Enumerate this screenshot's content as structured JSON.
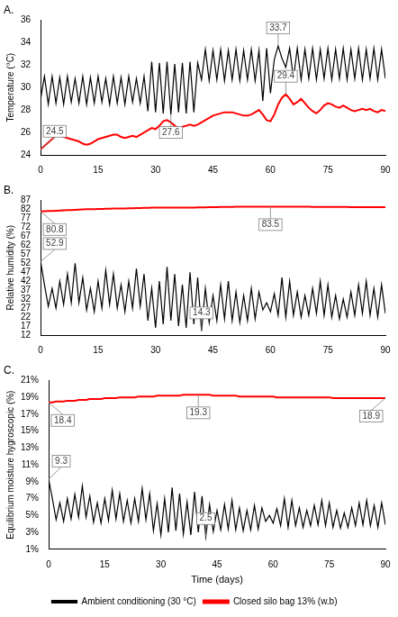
{
  "chart_data": [
    {
      "type": "line",
      "title": "A.",
      "y_label": "Temperature (°C)",
      "x": [
        0,
        1,
        2,
        3,
        4,
        5,
        6,
        7,
        8,
        9,
        10,
        11,
        12,
        13,
        14,
        15,
        16,
        17,
        18,
        19,
        20,
        21,
        22,
        23,
        24,
        25,
        26,
        27,
        28,
        29,
        30,
        31,
        32,
        33,
        34,
        35,
        36,
        37,
        38,
        39,
        40,
        41,
        42,
        43,
        44,
        45,
        46,
        47,
        48,
        49,
        50,
        51,
        52,
        53,
        54,
        55,
        56,
        57,
        58,
        59,
        60,
        61,
        62,
        63,
        64,
        65,
        66,
        67,
        68,
        69,
        70,
        71,
        72,
        73,
        74,
        75,
        76,
        77,
        78,
        79,
        80,
        81,
        82,
        83,
        84,
        85,
        86,
        87,
        88,
        89,
        90
      ],
      "xlim": [
        0,
        90
      ],
      "xticks": [
        0,
        15,
        30,
        45,
        60,
        75,
        90
      ],
      "ylim": [
        24,
        36
      ],
      "yticks": [
        24,
        26,
        28,
        30,
        32,
        34,
        36
      ],
      "grid": false,
      "series": [
        {
          "color": "#000000",
          "values": [
            29.0,
            31.0,
            28.5,
            31.0,
            28.6,
            30.9,
            28.5,
            31.0,
            28.7,
            30.8,
            28.6,
            31.0,
            28.5,
            30.9,
            28.6,
            31.0,
            28.7,
            30.8,
            28.5,
            31.0,
            28.6,
            30.9,
            28.5,
            31.0,
            28.7,
            30.8,
            28.6,
            31.0,
            27.9,
            32.3,
            27.8,
            32.2,
            27.7,
            32.3,
            27.6,
            32.1,
            27.8,
            32.2,
            27.7,
            32.3,
            27.8,
            32.2,
            30.7,
            33.4,
            30.6,
            33.3,
            30.7,
            33.4,
            30.6,
            33.3,
            30.7,
            33.4,
            30.6,
            33.3,
            30.7,
            33.4,
            30.6,
            33.3,
            28.8,
            33.5,
            29.5,
            32.5,
            33.7,
            32.6,
            31.8,
            33.5,
            30.8,
            33.5,
            30.7,
            33.4,
            30.8,
            33.5,
            30.7,
            33.4,
            30.8,
            33.5,
            30.7,
            33.4,
            30.8,
            33.5,
            30.7,
            33.4,
            30.8,
            33.5,
            30.7,
            33.4,
            30.8,
            33.5,
            30.7,
            33.4,
            30.8
          ]
        },
        {
          "color": "#ff0000",
          "values": [
            24.5,
            24.8,
            25.1,
            25.4,
            25.7,
            25.8,
            25.6,
            25.5,
            25.4,
            25.3,
            25.2,
            25.0,
            24.9,
            25.0,
            25.2,
            25.4,
            25.5,
            25.6,
            25.7,
            25.8,
            25.8,
            25.6,
            25.5,
            25.6,
            25.7,
            25.6,
            25.8,
            26.0,
            26.2,
            26.4,
            26.3,
            26.6,
            27.0,
            27.1,
            26.9,
            26.6,
            26.4,
            26.5,
            26.6,
            26.7,
            26.6,
            26.7,
            26.9,
            27.1,
            27.3,
            27.5,
            27.6,
            27.7,
            27.8,
            27.8,
            27.8,
            27.7,
            27.6,
            27.5,
            27.5,
            27.6,
            27.8,
            28.0,
            27.6,
            27.1,
            27.0,
            27.6,
            28.5,
            29.1,
            29.4,
            29.0,
            28.5,
            28.7,
            29.0,
            28.6,
            28.2,
            27.9,
            27.7,
            28.0,
            28.4,
            28.6,
            28.5,
            28.3,
            28.2,
            28.4,
            28.2,
            28.0,
            27.9,
            28.0,
            28.1,
            28.0,
            28.1,
            27.9,
            27.8,
            28.0,
            27.9
          ]
        }
      ],
      "annotations": [
        {
          "x": 62,
          "y": 33.7,
          "label": "33.7"
        },
        {
          "x": 34,
          "y": 27.6,
          "label": "27.6"
        },
        {
          "x": 64,
          "y": 29.4,
          "label": "29.4"
        },
        {
          "x": 0,
          "y": 24.5,
          "label": "24.5"
        }
      ]
    },
    {
      "type": "line",
      "title": "B.",
      "y_label": "Relative humidity (%)",
      "x": [
        0,
        1,
        2,
        3,
        4,
        5,
        6,
        7,
        8,
        9,
        10,
        11,
        12,
        13,
        14,
        15,
        16,
        17,
        18,
        19,
        20,
        21,
        22,
        23,
        24,
        25,
        26,
        27,
        28,
        29,
        30,
        31,
        32,
        33,
        34,
        35,
        36,
        37,
        38,
        39,
        40,
        41,
        42,
        43,
        44,
        45,
        46,
        47,
        48,
        49,
        50,
        51,
        52,
        53,
        54,
        55,
        56,
        57,
        58,
        59,
        60,
        61,
        62,
        63,
        64,
        65,
        66,
        67,
        68,
        69,
        70,
        71,
        72,
        73,
        74,
        75,
        76,
        77,
        78,
        79,
        80,
        81,
        82,
        83,
        84,
        85,
        86,
        87,
        88,
        89,
        90
      ],
      "xlim": [
        0,
        90
      ],
      "xticks": [
        0,
        15,
        30,
        45,
        60,
        75,
        90
      ],
      "ylim": [
        12,
        87
      ],
      "yticks": [
        12,
        17,
        22,
        27,
        32,
        37,
        42,
        47,
        52,
        57,
        62,
        67,
        72,
        77,
        82,
        87
      ],
      "grid": false,
      "series": [
        {
          "color": "#000000",
          "values": [
            52.9,
            40.0,
            28.0,
            38.0,
            27.0,
            42.0,
            29.0,
            46.0,
            30.0,
            52.0,
            30.0,
            44.0,
            26.0,
            38.0,
            25.0,
            42.0,
            27.0,
            48.0,
            29.0,
            46.0,
            27.0,
            40.0,
            25.0,
            42.0,
            27.0,
            49.0,
            28.0,
            46.0,
            20.0,
            38.0,
            16.0,
            42.0,
            18.0,
            50.0,
            20.0,
            46.0,
            17.0,
            40.0,
            16.0,
            47.0,
            18.0,
            44.0,
            14.3,
            38.0,
            19.0,
            34.0,
            20.0,
            40.0,
            21.0,
            42.0,
            20.0,
            36.0,
            19.0,
            34.0,
            20.0,
            38.0,
            21.0,
            36.0,
            26.0,
            30.0,
            25.0,
            35.0,
            23.0,
            44.0,
            22.0,
            42.0,
            23.0,
            36.0,
            22.0,
            34.0,
            23.0,
            38.0,
            24.0,
            42.0,
            23.0,
            40.0,
            22.0,
            34.0,
            21.0,
            32.0,
            22.0,
            36.0,
            23.0,
            40.0,
            24.0,
            42.0,
            23.0,
            38.0,
            22.0,
            40.0,
            24.0
          ]
        },
        {
          "color": "#ff0000",
          "values": [
            80.8,
            80.9,
            81.0,
            81.1,
            81.2,
            81.3,
            81.4,
            81.5,
            81.6,
            81.7,
            81.8,
            81.9,
            82.0,
            82.0,
            82.1,
            82.2,
            82.2,
            82.3,
            82.3,
            82.4,
            82.4,
            82.5,
            82.5,
            82.6,
            82.6,
            82.7,
            82.7,
            82.8,
            82.8,
            82.9,
            82.9,
            83.0,
            83.0,
            83.0,
            83.0,
            83.0,
            83.0,
            83.0,
            83.0,
            83.0,
            83.0,
            83.1,
            83.1,
            83.1,
            83.2,
            83.2,
            83.2,
            83.3,
            83.3,
            83.3,
            83.3,
            83.4,
            83.4,
            83.4,
            83.4,
            83.4,
            83.5,
            83.5,
            83.5,
            83.5,
            83.5,
            83.4,
            83.4,
            83.4,
            83.4,
            83.4,
            83.4,
            83.4,
            83.4,
            83.4,
            83.4,
            83.3,
            83.3,
            83.3,
            83.3,
            83.3,
            83.3,
            83.3,
            83.3,
            83.3,
            83.3,
            83.2,
            83.2,
            83.2,
            83.2,
            83.2,
            83.2,
            83.2,
            83.2,
            83.2,
            83.2
          ]
        }
      ],
      "annotations": [
        {
          "x": 0,
          "y": 80.8,
          "label": "80.8"
        },
        {
          "x": 60,
          "y": 83.5,
          "label": "83.5"
        },
        {
          "x": 0,
          "y": 52.9,
          "label": "52.9"
        },
        {
          "x": 42,
          "y": 14.3,
          "label": "14.3"
        }
      ]
    },
    {
      "type": "line",
      "title": "C.",
      "y_label": "Equilibrium moisture hygroscopic (%)",
      "x_label": "Time (days)",
      "x": [
        0,
        1,
        2,
        3,
        4,
        5,
        6,
        7,
        8,
        9,
        10,
        11,
        12,
        13,
        14,
        15,
        16,
        17,
        18,
        19,
        20,
        21,
        22,
        23,
        24,
        25,
        26,
        27,
        28,
        29,
        30,
        31,
        32,
        33,
        34,
        35,
        36,
        37,
        38,
        39,
        40,
        41,
        42,
        43,
        44,
        45,
        46,
        47,
        48,
        49,
        50,
        51,
        52,
        53,
        54,
        55,
        56,
        57,
        58,
        59,
        60,
        61,
        62,
        63,
        64,
        65,
        66,
        67,
        68,
        69,
        70,
        71,
        72,
        73,
        74,
        75,
        76,
        77,
        78,
        79,
        80,
        81,
        82,
        83,
        84,
        85,
        86,
        87,
        88,
        89,
        90
      ],
      "xlim": [
        0,
        90
      ],
      "xticks": [
        0,
        15,
        30,
        45,
        60,
        75,
        90
      ],
      "ylim": [
        1,
        21
      ],
      "yticks": [
        {
          "value": 1,
          "label": "1%"
        },
        {
          "value": 3,
          "label": "3%"
        },
        {
          "value": 5,
          "label": "5%"
        },
        {
          "value": 7,
          "label": "7%"
        },
        {
          "value": 9,
          "label": "9%"
        },
        {
          "value": 11,
          "label": "11%"
        },
        {
          "value": 13,
          "label": "13%"
        },
        {
          "value": 15,
          "label": "15%"
        },
        {
          "value": 17,
          "label": "17%"
        },
        {
          "value": 19,
          "label": "19%"
        },
        {
          "value": 21,
          "label": "21%"
        }
      ],
      "grid": false,
      "legend": "bottom",
      "series": [
        {
          "name": "Ambient conditioning (30 °C)",
          "color": "#000000",
          "values": [
            9.3,
            7.0,
            4.5,
            6.5,
            4.3,
            7.0,
            4.6,
            7.5,
            4.8,
            8.5,
            4.8,
            7.3,
            4.2,
            6.5,
            4.1,
            7.0,
            4.4,
            8.0,
            4.6,
            7.6,
            4.3,
            6.8,
            4.1,
            7.0,
            4.3,
            8.2,
            4.5,
            7.6,
            3.2,
            6.4,
            2.7,
            7.0,
            3.0,
            8.3,
            3.2,
            7.6,
            2.8,
            6.6,
            2.7,
            7.8,
            3.0,
            7.3,
            2.5,
            6.3,
            3.1,
            5.6,
            3.3,
            6.3,
            3.4,
            6.8,
            3.3,
            5.9,
            3.2,
            5.6,
            3.3,
            6.2,
            3.4,
            5.9,
            4.3,
            5.0,
            4.1,
            5.8,
            3.8,
            7.0,
            3.6,
            6.8,
            3.8,
            5.9,
            3.6,
            5.6,
            3.8,
            6.2,
            3.9,
            6.8,
            3.8,
            6.5,
            3.6,
            5.6,
            3.5,
            5.3,
            3.6,
            5.9,
            3.8,
            6.5,
            3.9,
            6.8,
            3.8,
            6.2,
            3.6,
            6.5,
            3.9
          ]
        },
        {
          "name": "Closed silo bag 13% (w.b)",
          "color": "#ff0000",
          "values": [
            18.4,
            18.4,
            18.5,
            18.5,
            18.5,
            18.6,
            18.6,
            18.6,
            18.7,
            18.7,
            18.7,
            18.8,
            18.8,
            18.8,
            18.8,
            18.9,
            18.9,
            18.9,
            18.9,
            19.0,
            19.0,
            19.0,
            19.0,
            19.0,
            19.1,
            19.1,
            19.1,
            19.1,
            19.1,
            19.2,
            19.2,
            19.2,
            19.2,
            19.2,
            19.2,
            19.2,
            19.3,
            19.3,
            19.3,
            19.3,
            19.3,
            19.3,
            19.3,
            19.3,
            19.2,
            19.2,
            19.2,
            19.2,
            19.2,
            19.2,
            19.2,
            19.1,
            19.1,
            19.1,
            19.1,
            19.1,
            19.1,
            19.1,
            19.1,
            19.1,
            19.1,
            19.0,
            19.0,
            19.0,
            19.0,
            19.0,
            19.0,
            19.0,
            19.0,
            19.0,
            19.0,
            19.0,
            19.0,
            19.0,
            19.0,
            19.0,
            18.9,
            18.9,
            18.9,
            18.9,
            18.9,
            18.9,
            18.9,
            18.9,
            18.9,
            18.9,
            18.9,
            18.9,
            18.9,
            18.9,
            18.9
          ]
        }
      ],
      "annotations": [
        {
          "x": 0,
          "y": 18.4,
          "label": "18.4"
        },
        {
          "x": 40,
          "y": 19.3,
          "label": "19.3"
        },
        {
          "x": 90,
          "y": 18.9,
          "label": "18.9"
        },
        {
          "x": 0,
          "y": 9.3,
          "label": "9.3"
        },
        {
          "x": 42,
          "y": 2.5,
          "label": "2.5"
        }
      ]
    }
  ]
}
